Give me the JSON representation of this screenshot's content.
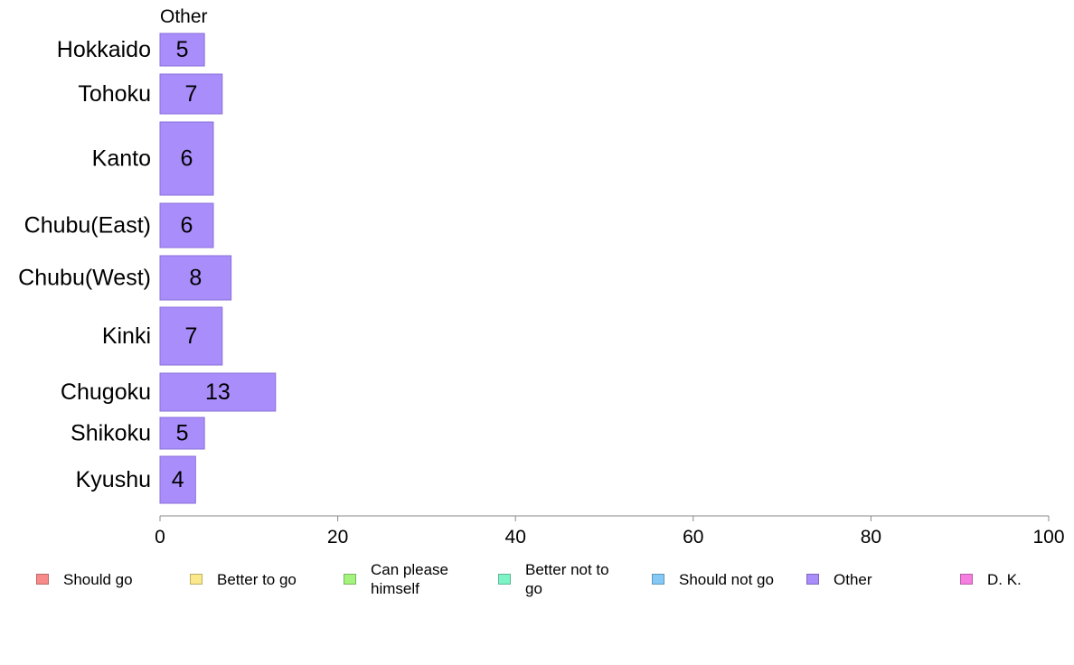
{
  "chart_data": {
    "type": "bar",
    "orientation": "horizontal",
    "title": "Other",
    "categories": [
      "Hokkaido",
      "Tohoku",
      "Kanto",
      "Chubu(East)",
      "Chubu(West)",
      "Kinki",
      "Chugoku",
      "Shikoku",
      "Kyushu"
    ],
    "series": [
      {
        "name": "Other",
        "color": "#a98dfb",
        "values": [
          5,
          7,
          6,
          6,
          8,
          7,
          13,
          5,
          4
        ]
      }
    ],
    "value_labels": [
      "5",
      "7",
      "6",
      "6",
      "8",
      "7",
      "13",
      "5",
      "4"
    ],
    "xlim": [
      0,
      100
    ],
    "xticks": [
      0,
      20,
      40,
      60,
      80,
      100
    ],
    "xtick_labels": [
      "0",
      "20",
      "40",
      "60",
      "80",
      "100"
    ],
    "grid": false,
    "legend_position": "bottom"
  },
  "legend": [
    {
      "label": "Should go",
      "color": "#f88a8a"
    },
    {
      "label": "Better to go",
      "color": "#fbe88a"
    },
    {
      "label": "Can please himself",
      "color": "#a3f37e"
    },
    {
      "label": "Better not to go",
      "color": "#7ef3c6"
    },
    {
      "label": "Should not go",
      "color": "#84c8f6"
    },
    {
      "label": "Other",
      "color": "#a98dfb"
    },
    {
      "label": "D. K.",
      "color": "#f57ee0"
    }
  ]
}
